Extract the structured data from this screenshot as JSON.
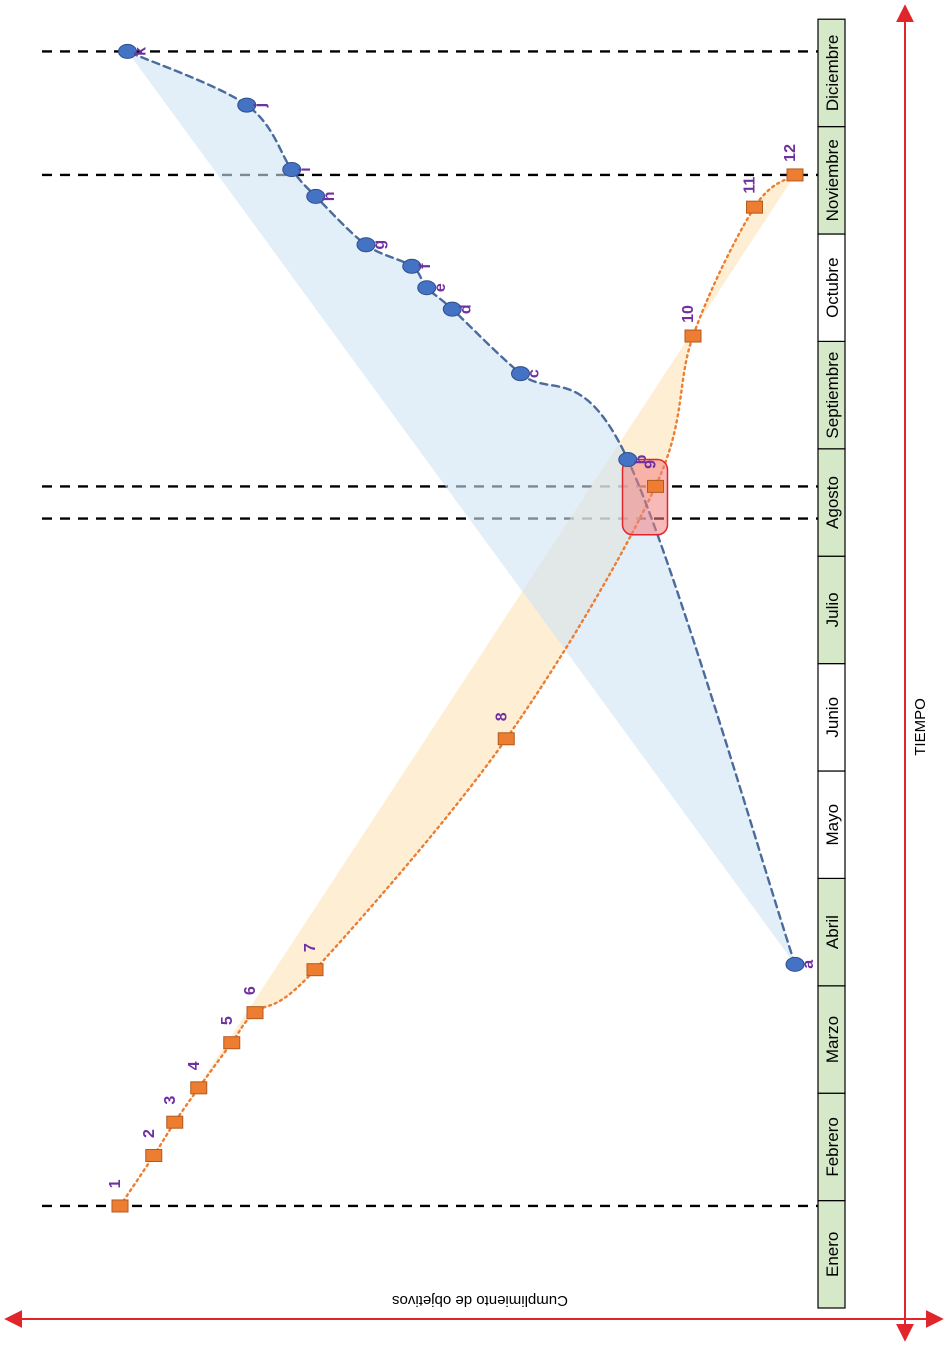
{
  "chart_data": {
    "type": "line",
    "orientation": "rotated-90-clockwise",
    "xlabel": "TIEMPO",
    "ylabel": "Cumplimiento de objetivos",
    "categories": [
      "Enero",
      "Febrero",
      "Marzo",
      "Abril",
      "Mayo",
      "Junio",
      "Julio",
      "Agosto",
      "Septiembre",
      "Octubre",
      "Noviembre",
      "Diciembre"
    ],
    "highlighted_months": [
      "Enero",
      "Febrero",
      "Marzo",
      "Abril",
      "Julio",
      "Agosto",
      "Septiembre",
      "Noviembre",
      "Diciembre"
    ],
    "series": [
      {
        "name": "",
        "marker": "square",
        "color": "#ed7d31",
        "style": "dotted",
        "labels": [
          "1",
          "2",
          "3",
          "4",
          "5",
          "6",
          "7",
          "8",
          "9",
          "10",
          "11",
          "12"
        ],
        "x": [
          0.95,
          1.42,
          1.73,
          2.05,
          2.47,
          2.75,
          3.15,
          5.3,
          7.65,
          9.05,
          10.25,
          10.55
        ],
        "y": [
          90,
          85.5,
          82.7,
          79.5,
          75.1,
          72,
          64,
          38.5,
          18.6,
          13.6,
          5.4,
          0
        ]
      },
      {
        "name": "",
        "marker": "circle",
        "color": "#4a6b9c",
        "style": "dashed",
        "labels": [
          "a",
          "b",
          "c",
          "d",
          "e",
          "f",
          "g",
          "h",
          "i",
          "j",
          "k"
        ],
        "x": [
          3.2,
          7.9,
          8.7,
          9.3,
          9.5,
          9.7,
          9.9,
          10.35,
          10.6,
          11.2,
          11.7
        ],
        "y": [
          0,
          22.3,
          36.6,
          45.7,
          49.1,
          51.1,
          57.2,
          63.9,
          67.1,
          73.1,
          89
        ]
      }
    ],
    "reference_lines_x": [
      0.95,
      7.35,
      7.65,
      10.55,
      11.7
    ],
    "highlight_box": {
      "x": [
        7.2,
        7.9
      ],
      "y": [
        17,
        23
      ]
    }
  }
}
